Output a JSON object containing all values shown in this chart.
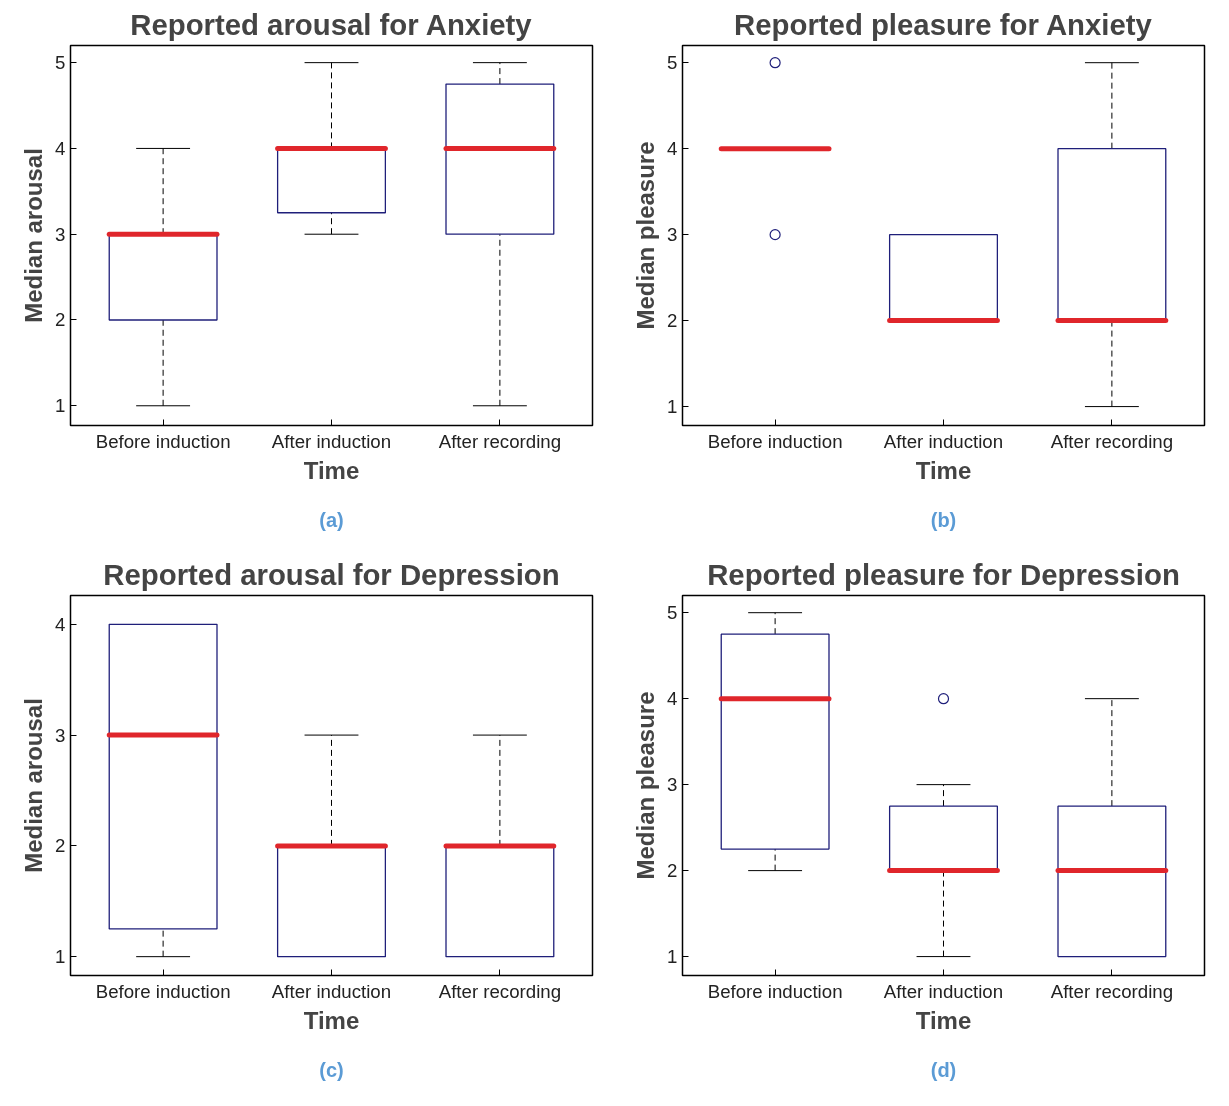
{
  "chart_data": [
    {
      "type": "box",
      "title": "Reported arousal for Anxiety",
      "xlabel": "Time",
      "ylabel": "Median arousal",
      "categories": [
        "Before induction",
        "After induction",
        "After recording"
      ],
      "series": [
        {
          "color": "#1f1f7a",
          "boxes": [
            {
              "low": 1,
              "q1": 2,
              "median": 3,
              "q3": 3,
              "high": 4
            },
            {
              "low": 3,
              "q1": 3.25,
              "median": 4,
              "q3": 4,
              "high": 5
            },
            {
              "low": 1,
              "q1": 3,
              "median": 4,
              "q3": 4.75,
              "high": 5
            }
          ]
        }
      ],
      "ylim": [
        0.77,
        5.2
      ],
      "yticks": [
        1,
        2,
        3,
        4,
        5
      ],
      "grid": false,
      "annotations": [
        "(a)"
      ]
    },
    {
      "type": "box",
      "title": "Reported pleasure for Anxiety",
      "xlabel": "Time",
      "ylabel": "Median pleasure",
      "categories": [
        "Before induction",
        "After induction",
        "After recording"
      ],
      "series": [
        {
          "color": "#1f1f7a",
          "boxes": [
            {
              "low": 4,
              "q1": 4,
              "median": 4,
              "q3": 4,
              "high": 4,
              "outliers": [
                5,
                3
              ]
            },
            {
              "low": 2,
              "q1": 2,
              "median": 2,
              "q3": 3,
              "high": 3
            },
            {
              "low": 1,
              "q1": 2,
              "median": 2,
              "q3": 4,
              "high": 5
            }
          ]
        }
      ],
      "ylim": [
        0.78,
        5.2
      ],
      "yticks": [
        1,
        2,
        3,
        4,
        5
      ],
      "grid": false,
      "annotations": [
        "(b)"
      ]
    },
    {
      "type": "box",
      "title": "Reported arousal for Depression",
      "xlabel": "Time",
      "ylabel": "Median arousal",
      "categories": [
        "Before induction",
        "After induction",
        "After recording"
      ],
      "series": [
        {
          "color": "#1f1f7a",
          "boxes": [
            {
              "low": 1,
              "q1": 1.25,
              "median": 3,
              "q3": 4,
              "high": 4
            },
            {
              "low": 1,
              "q1": 1,
              "median": 2,
              "q3": 2,
              "high": 3
            },
            {
              "low": 1,
              "q1": 1,
              "median": 2,
              "q3": 2,
              "high": 3
            }
          ]
        }
      ],
      "ylim": [
        0.83,
        4.26
      ],
      "yticks": [
        1,
        2,
        3,
        4
      ],
      "grid": false,
      "annotations": [
        "(c)"
      ]
    },
    {
      "type": "box",
      "title": "Reported pleasure for Depression",
      "xlabel": "Time",
      "ylabel": "Median pleasure",
      "categories": [
        "Before induction",
        "After induction",
        "After recording"
      ],
      "series": [
        {
          "color": "#1f1f7a",
          "boxes": [
            {
              "low": 2,
              "q1": 2.25,
              "median": 4,
              "q3": 4.75,
              "high": 5
            },
            {
              "low": 1,
              "q1": 2,
              "median": 2,
              "q3": 2.75,
              "high": 3,
              "outliers": [
                4
              ]
            },
            {
              "low": 1,
              "q1": 1,
              "median": 2,
              "q3": 2.75,
              "high": 4
            }
          ]
        }
      ],
      "ylim": [
        0.78,
        5.2
      ],
      "yticks": [
        1,
        2,
        3,
        4,
        5
      ],
      "grid": false,
      "annotations": [
        "(d)"
      ]
    }
  ]
}
